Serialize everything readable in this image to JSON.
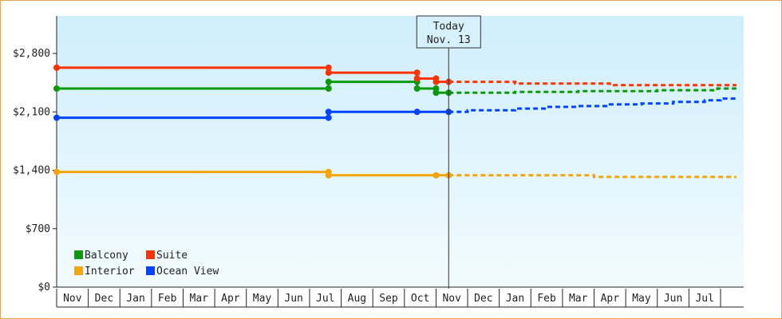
{
  "chart_data": {
    "type": "line",
    "y_ticks": [
      "$0",
      "$700",
      "$1,400",
      "$2,100",
      "$2,800"
    ],
    "y_tick_values": [
      0,
      700,
      1400,
      2100,
      2800
    ],
    "ylim": [
      0,
      3250
    ],
    "months": [
      "Nov",
      "Dec",
      "Jan",
      "Feb",
      "Mar",
      "Apr",
      "May",
      "Jun",
      "Jul",
      "Aug",
      "Sep",
      "Oct",
      "Nov",
      "Dec",
      "Jan",
      "Feb",
      "Mar",
      "Apr",
      "May",
      "Jun",
      "Jul"
    ],
    "x_range": [
      0,
      21.5
    ],
    "today": {
      "line1": "Today",
      "line2": "Nov. 13",
      "x": 12.4
    },
    "grid": false,
    "legend_position": "bottom-left",
    "series": [
      {
        "name": "Balcony",
        "color": "#0a9a0a",
        "history": [
          [
            0,
            2380
          ],
          [
            8.6,
            2380
          ],
          [
            8.6,
            2460
          ],
          [
            11.4,
            2460
          ],
          [
            11.4,
            2380
          ],
          [
            12.0,
            2380
          ],
          [
            12.0,
            2330
          ],
          [
            12.4,
            2330
          ]
        ],
        "markers": [
          [
            0,
            2380
          ],
          [
            8.6,
            2380
          ],
          [
            8.6,
            2460
          ],
          [
            11.4,
            2460
          ],
          [
            11.4,
            2380
          ],
          [
            12.0,
            2380
          ],
          [
            12.0,
            2330
          ],
          [
            12.4,
            2330
          ]
        ],
        "forecast": [
          [
            12.4,
            2330
          ],
          [
            14.5,
            2330
          ],
          [
            14.5,
            2340
          ],
          [
            16.5,
            2340
          ],
          [
            16.5,
            2350
          ],
          [
            19.0,
            2350
          ],
          [
            19.0,
            2360
          ],
          [
            20.9,
            2360
          ],
          [
            20.9,
            2380
          ],
          [
            21.5,
            2380
          ]
        ]
      },
      {
        "name": "Suite",
        "color": "#ff3300",
        "history": [
          [
            0,
            2630
          ],
          [
            8.6,
            2630
          ],
          [
            8.6,
            2570
          ],
          [
            11.4,
            2570
          ],
          [
            11.4,
            2500
          ],
          [
            12.0,
            2500
          ],
          [
            12.0,
            2460
          ],
          [
            12.4,
            2460
          ]
        ],
        "markers": [
          [
            0,
            2630
          ],
          [
            8.6,
            2630
          ],
          [
            8.6,
            2570
          ],
          [
            11.4,
            2570
          ],
          [
            11.4,
            2500
          ],
          [
            12.0,
            2500
          ],
          [
            12.0,
            2460
          ],
          [
            12.4,
            2460
          ]
        ],
        "forecast": [
          [
            12.4,
            2460
          ],
          [
            14.5,
            2460
          ],
          [
            14.5,
            2440
          ],
          [
            17.5,
            2440
          ],
          [
            17.5,
            2420
          ],
          [
            21.5,
            2420
          ]
        ]
      },
      {
        "name": "Interior",
        "color": "#f5a40a",
        "history": [
          [
            0,
            1380
          ],
          [
            8.6,
            1380
          ],
          [
            8.6,
            1340
          ],
          [
            12.4,
            1340
          ]
        ],
        "markers": [
          [
            0,
            1380
          ],
          [
            8.6,
            1380
          ],
          [
            8.6,
            1340
          ],
          [
            12.0,
            1340
          ],
          [
            12.4,
            1340
          ]
        ],
        "forecast": [
          [
            12.4,
            1340
          ],
          [
            17.0,
            1340
          ],
          [
            17.0,
            1320
          ],
          [
            21.5,
            1320
          ]
        ]
      },
      {
        "name": "Ocean View",
        "color": "#0044ff",
        "history": [
          [
            0,
            2030
          ],
          [
            8.6,
            2030
          ],
          [
            8.6,
            2100
          ],
          [
            11.4,
            2100
          ],
          [
            12.4,
            2100
          ]
        ],
        "markers": [
          [
            0,
            2030
          ],
          [
            8.6,
            2030
          ],
          [
            8.6,
            2100
          ],
          [
            11.4,
            2100
          ],
          [
            12.4,
            2100
          ]
        ],
        "forecast": [
          [
            12.4,
            2100
          ],
          [
            13.0,
            2100
          ],
          [
            13.0,
            2120
          ],
          [
            14.5,
            2120
          ],
          [
            14.5,
            2140
          ],
          [
            15.5,
            2140
          ],
          [
            15.5,
            2160
          ],
          [
            16.5,
            2160
          ],
          [
            16.5,
            2170
          ],
          [
            17.5,
            2170
          ],
          [
            17.5,
            2190
          ],
          [
            18.5,
            2190
          ],
          [
            18.5,
            2200
          ],
          [
            19.5,
            2200
          ],
          [
            19.5,
            2220
          ],
          [
            20.5,
            2220
          ],
          [
            20.5,
            2240
          ],
          [
            21.0,
            2240
          ],
          [
            21.0,
            2260
          ],
          [
            21.5,
            2260
          ]
        ]
      }
    ]
  }
}
